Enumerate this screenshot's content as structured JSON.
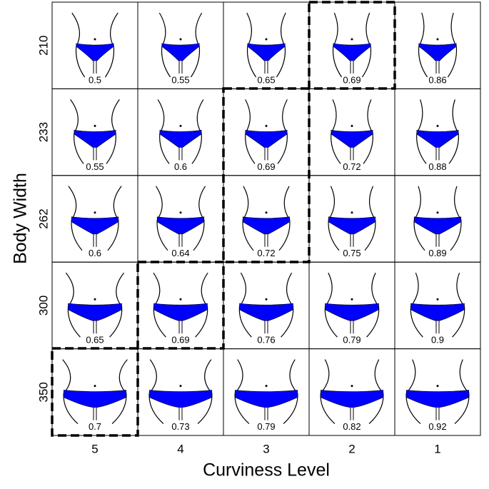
{
  "y_label": "Body Width",
  "x_label": "Curviness Level",
  "columns": [
    5,
    4,
    3,
    2,
    1
  ],
  "rows": [
    210,
    233,
    262,
    300,
    350
  ],
  "cells": [
    [
      0.5,
      0.55,
      0.65,
      0.69,
      0.86
    ],
    [
      0.55,
      0.6,
      0.69,
      0.72,
      0.88
    ],
    [
      0.6,
      0.64,
      0.72,
      0.75,
      0.89
    ],
    [
      0.65,
      0.69,
      0.76,
      0.79,
      0.9
    ],
    [
      0.7,
      0.73,
      0.79,
      0.82,
      0.92
    ]
  ]
}
